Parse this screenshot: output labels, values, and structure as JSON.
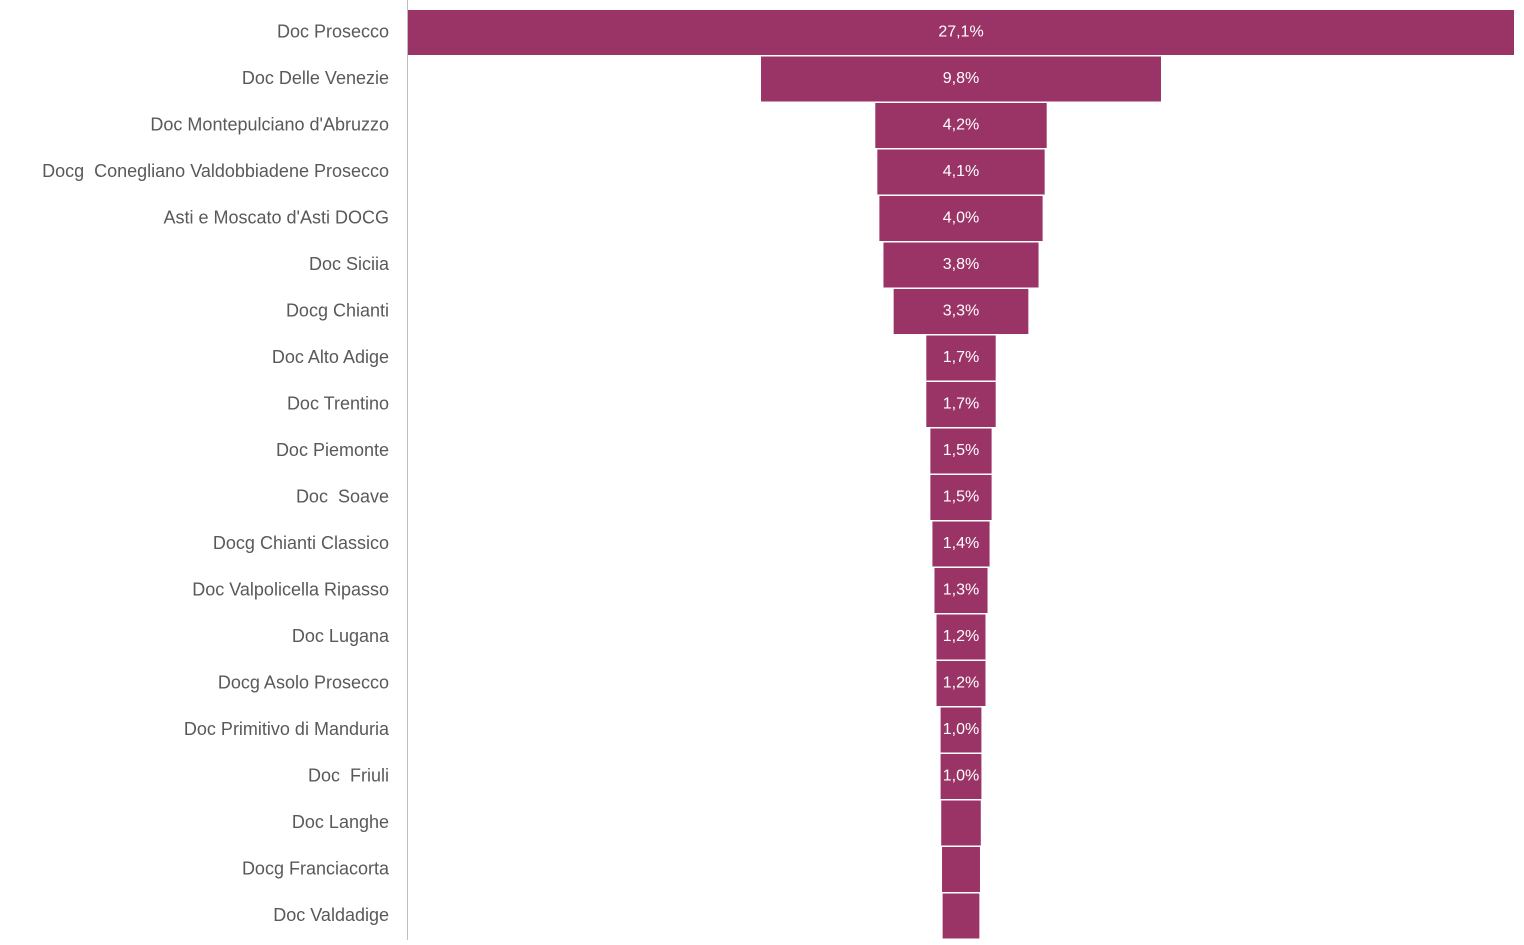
{
  "chart_data": {
    "type": "funnel",
    "categories": [
      "Doc Prosecco",
      "Doc Delle Venezie",
      "Doc Montepulciano d'Abruzzo",
      "Docg  Conegliano Valdobbiadene Prosecco",
      "Asti e Moscato d'Asti DOCG",
      "Doc Siciia",
      "Docg Chianti",
      "Doc Alto Adige",
      "Doc Trentino",
      "Doc Piemonte",
      "Doc  Soave",
      "Docg Chianti Classico",
      "Doc Valpolicella Ripasso",
      "Doc Lugana",
      "Docg Asolo Prosecco",
      "Doc Primitivo di Manduria",
      "Doc  Friuli",
      "Doc Langhe",
      "Docg Franciacorta",
      "Doc Valdadige"
    ],
    "values": [
      27.1,
      9.8,
      4.2,
      4.1,
      4.0,
      3.8,
      3.3,
      1.7,
      1.7,
      1.5,
      1.5,
      1.4,
      1.3,
      1.2,
      1.2,
      1.0,
      1.0,
      0.97,
      0.93,
      0.9
    ],
    "value_labels": [
      "27,1%",
      "9,8%",
      "4,2%",
      "4,1%",
      "4,0%",
      "3,8%",
      "3,3%",
      "1,7%",
      "1,7%",
      "1,5%",
      "1,5%",
      "1,4%",
      "1,3%",
      "1,2%",
      "1,2%",
      "1,0%",
      "1,0%",
      null,
      null,
      null
    ],
    "color": "#9b3466"
  }
}
